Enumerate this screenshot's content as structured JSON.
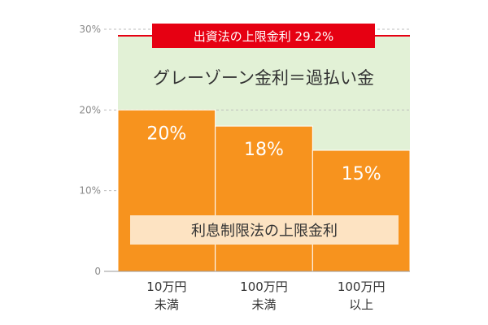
{
  "chart_data": {
    "type": "bar",
    "categories": [
      "10万円\n未満",
      "100万円\n未満",
      "100万円\n以上"
    ],
    "values": [
      20,
      18,
      15
    ],
    "value_labels": [
      "20%",
      "18%",
      "15%"
    ],
    "ylim": [
      0,
      30
    ],
    "yticks": [
      0,
      10,
      20,
      30
    ],
    "ytick_labels": [
      "0",
      "10%",
      "20%",
      "30%"
    ],
    "grid": true,
    "reference_line": {
      "value": 29.2,
      "label": "出資法の上限金利 29.2%"
    },
    "region_label": "グレーゾーン金利＝過払い金",
    "base_label": "利息制限法の上限金利",
    "colors": {
      "bar": "#f7931e",
      "gray_zone": "#e2f1d6",
      "reference": "#e60012",
      "base_label_bg": "#fde3c2"
    }
  }
}
